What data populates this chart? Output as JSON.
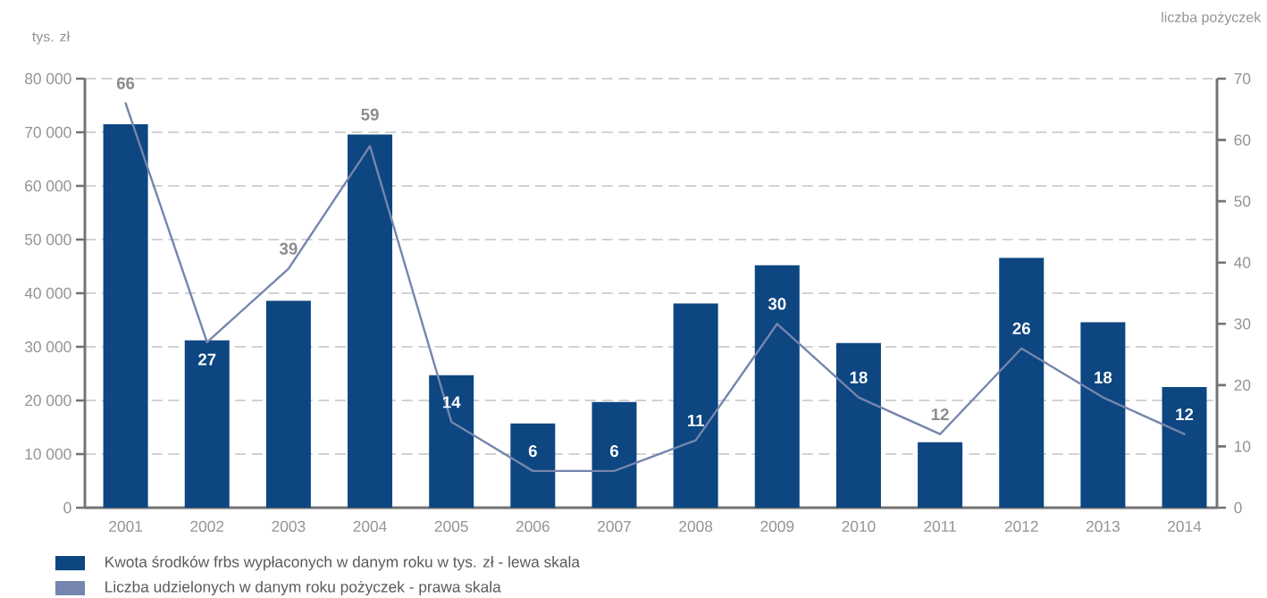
{
  "chart_data": {
    "type": "bar",
    "ylabel": "tys. zł",
    "y2label": "liczba pożyczek",
    "categories": [
      "2001",
      "2002",
      "2003",
      "2004",
      "2005",
      "2006",
      "2007",
      "2008",
      "2009",
      "2010",
      "2011",
      "2012",
      "2013",
      "2014"
    ],
    "series": [
      {
        "name": "Kwota środków frbs wypłaconych w danym roku w tys. zł - lewa skala",
        "color": "#0d4681",
        "values": [
          71500,
          31200,
          38600,
          69600,
          24700,
          15700,
          19700,
          38100,
          45200,
          30700,
          12200,
          46600,
          34600,
          22500
        ]
      },
      {
        "name": "Liczba udzielonych w danym roku pożyczek - prawa skala",
        "type": "line",
        "axis": "y2",
        "color": "#7585ad",
        "values": [
          66,
          27,
          39,
          59,
          14,
          6,
          6,
          11,
          30,
          18,
          12,
          26,
          18,
          12
        ],
        "value_labels": [
          "66",
          "27",
          "39",
          "59",
          "14",
          "6",
          "6",
          "11",
          "30",
          "18",
          "12",
          "26",
          "18",
          "12"
        ]
      }
    ],
    "ylim": [
      0,
      80000
    ],
    "yticks": [
      {
        "value": 0,
        "label": "0"
      },
      {
        "value": 10000,
        "label": "10 000"
      },
      {
        "value": 20000,
        "label": "20 000"
      },
      {
        "value": 30000,
        "label": "30 000"
      },
      {
        "value": 40000,
        "label": "40 000"
      },
      {
        "value": 50000,
        "label": "50 000"
      },
      {
        "value": 60000,
        "label": "60 000"
      },
      {
        "value": 70000,
        "label": "70 000"
      },
      {
        "value": 80000,
        "label": "80 000"
      }
    ],
    "y2lim": [
      0,
      70
    ],
    "y2ticks": [
      0,
      10,
      20,
      30,
      40,
      50,
      60,
      70
    ],
    "grid": "y",
    "legend": "bottom"
  }
}
